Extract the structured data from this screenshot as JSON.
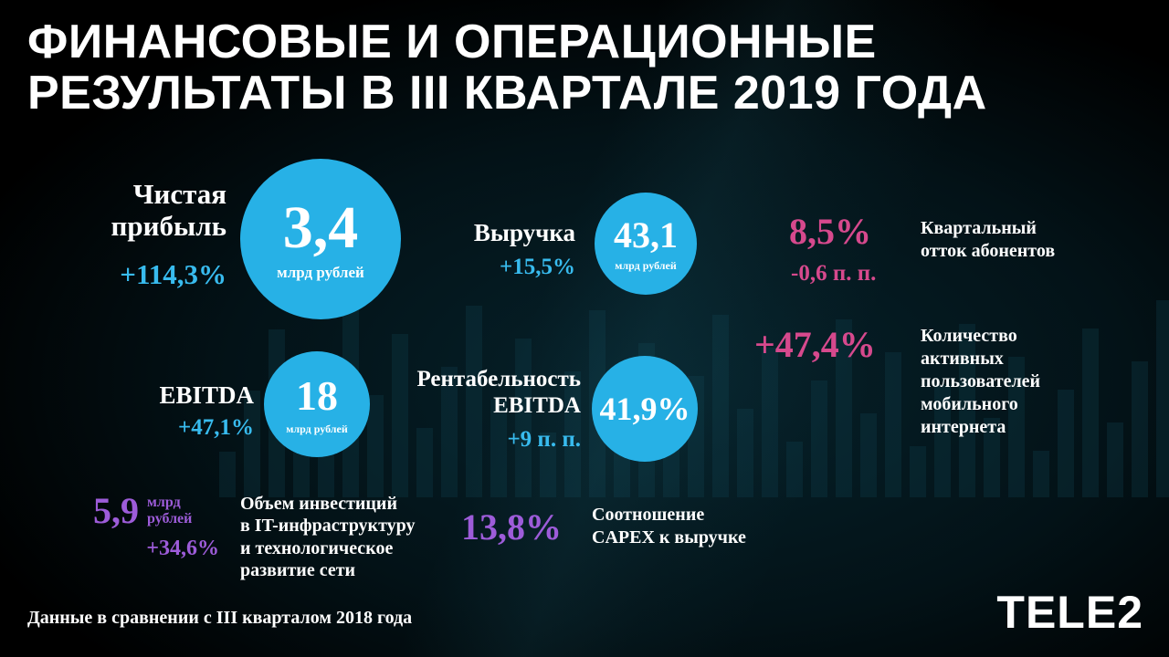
{
  "colors": {
    "circle_blue": "#27b1e6",
    "cyan_text": "#38bbee",
    "pink_text": "#d6498d",
    "purple_text": "#9d5cd9",
    "background": "#000000"
  },
  "chart_data": {
    "type": "table",
    "title_line1": "ФИНАНСОВЫЕ И ОПЕРАЦИОННЫЕ",
    "title_line2": "РЕЗУЛЬТАТЫ В III КВАРТАЛЕ 2019 ГОДА",
    "metrics": {
      "net_profit": {
        "label": "Чистая\nприбыль",
        "change": "+114,3%",
        "value": "3,4",
        "unit": "млрд рублей"
      },
      "revenue": {
        "label": "Выручка",
        "change": "+15,5%",
        "value": "43,1",
        "unit": "млрд рублей"
      },
      "subscriber_churn": {
        "value": "8,5%",
        "change": "-0,6 п. п.",
        "label": "Квартальный\nотток абонентов"
      },
      "mobile_internet_users": {
        "change": "+47,4%",
        "label": "Количество\nактивных\nпользователей\nмобильного\nинтернета"
      },
      "ebitda": {
        "label": "EBITDA",
        "change": "+47,1%",
        "value": "18",
        "unit": "млрд рублей"
      },
      "ebitda_margin": {
        "label": "Рентабельность\nEBITDA",
        "change": "+9 п. п.",
        "value": "41,9%"
      },
      "it_investments": {
        "value": "5,9",
        "unit_line1": "млрд",
        "unit_line2": "рублей",
        "change": "+34,6%",
        "label": "Объем инвестиций\nв IT-инфраструктуру\nи технологическое\nразвитие сети"
      },
      "capex_to_revenue": {
        "value": "13,8%",
        "label": "Соотношение\nCAPEX к выручке"
      }
    },
    "footnote": "Данные в сравнении с III кварталом 2018 года",
    "logo": "TELE2"
  }
}
